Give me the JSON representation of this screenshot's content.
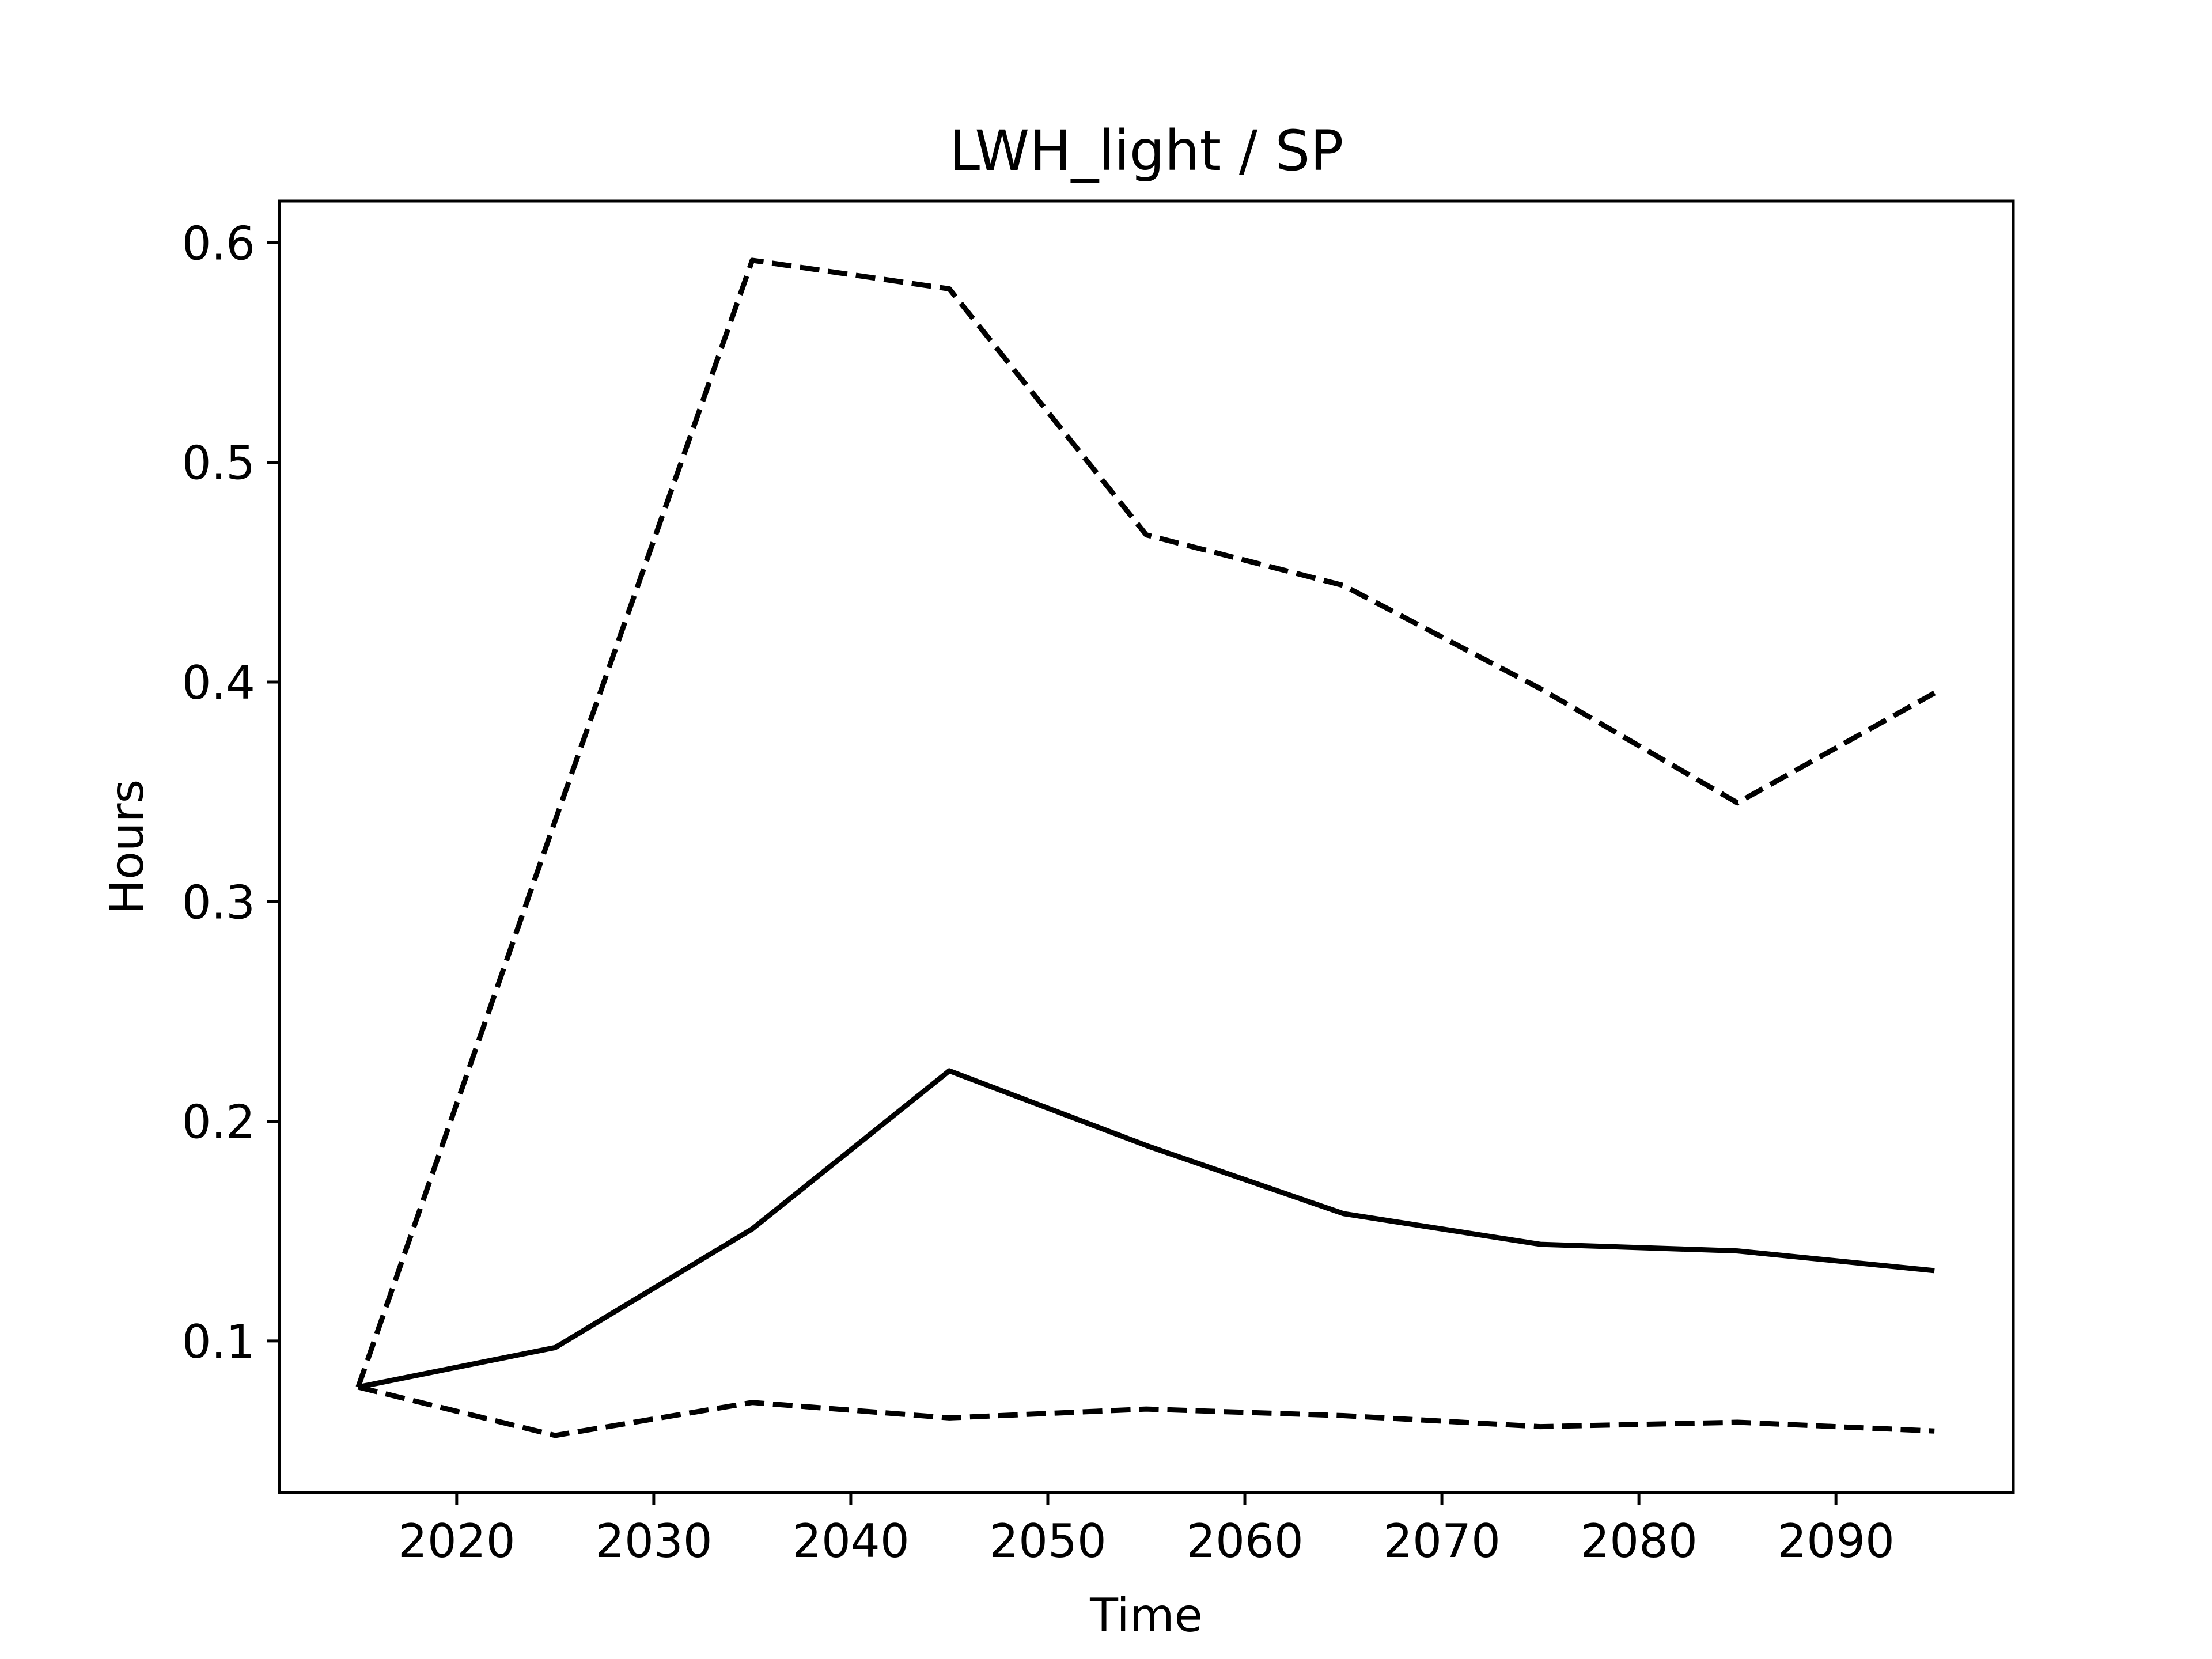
{
  "chart_data": {
    "type": "line",
    "title": "LWH_light / SP",
    "xlabel": "Time",
    "ylabel": "Hours",
    "xlim": [
      2011,
      2099
    ],
    "ylim": [
      0.031,
      0.619
    ],
    "xticks": [
      2020,
      2030,
      2040,
      2050,
      2060,
      2070,
      2080,
      2090
    ],
    "yticks": [
      0.1,
      0.2,
      0.3,
      0.4,
      0.5,
      0.6
    ],
    "grid": false,
    "legend": false,
    "x": [
      2015,
      2025,
      2035,
      2045,
      2055,
      2065,
      2075,
      2085,
      2095
    ],
    "series": [
      {
        "style": "dashed",
        "color": "#000000",
        "values": [
          0.079,
          0.337,
          0.592,
          0.579,
          0.467,
          0.444,
          0.397,
          0.345,
          0.395
        ]
      },
      {
        "style": "solid",
        "color": "#000000",
        "values": [
          0.079,
          0.097,
          0.151,
          0.223,
          0.189,
          0.158,
          0.144,
          0.141,
          0.132
        ]
      },
      {
        "style": "dashed",
        "color": "#000000",
        "values": [
          0.079,
          0.057,
          0.072,
          0.065,
          0.069,
          0.066,
          0.061,
          0.063,
          0.059
        ]
      }
    ]
  }
}
